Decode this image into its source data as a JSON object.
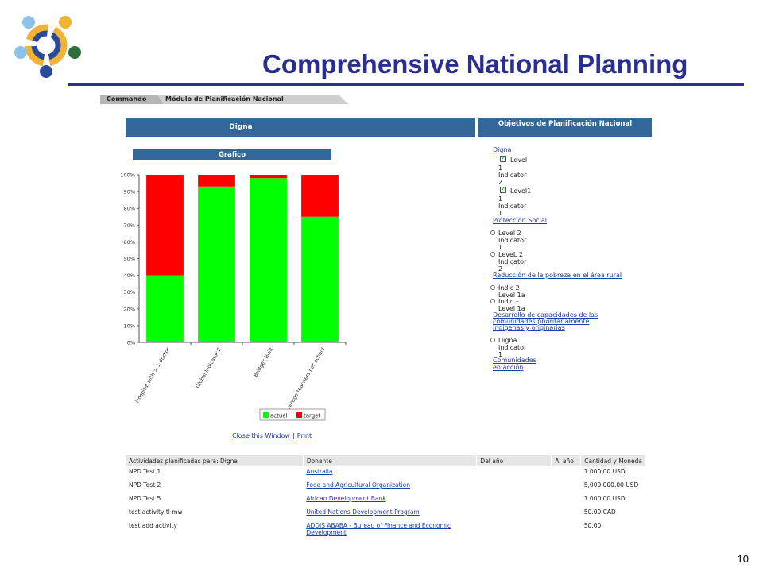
{
  "slide": {
    "title": "Comprehensive National Planning",
    "page_number": "10"
  },
  "breadcrumb": [
    "Commando",
    "Módulo de Planificación Nacional"
  ],
  "panels": {
    "left_header": "Digna",
    "right_header": "Objetivos de Planificación Nacional",
    "chart_header": "Gráfico"
  },
  "chart_data": {
    "type": "bar",
    "stacked": true,
    "categories": [
      "Hospital with > 1 doctor",
      "Global Indicator 2",
      "Bridges Built",
      "Average teachers per school"
    ],
    "series": [
      {
        "name": "actual",
        "values": [
          40,
          93,
          98,
          75
        ],
        "color": "#00ff00"
      },
      {
        "name": "target",
        "values": [
          60,
          7,
          2,
          25
        ],
        "color": "#ff0000"
      }
    ],
    "yticks": [
      "0%",
      "10%",
      "20%",
      "30%",
      "40%",
      "50%",
      "60%",
      "70%",
      "80%",
      "90%",
      "100%"
    ],
    "ylim": [
      0,
      100
    ],
    "legend_position": "bottom"
  },
  "chart_links": {
    "close": "Close this Window",
    "separator": "|",
    "print": "Print"
  },
  "tree": {
    "digna": "Digna",
    "level_1": "Level",
    "level_1_num": "1",
    "indicator_2": "Indicator",
    "indicator_2_num": "2",
    "level1": "Level1",
    "level1_num": "1",
    "indicator_1": "Indicator",
    "indicator_1_num": "1",
    "proteccion": "Protección Social",
    "level2": "Level 2",
    "level2_ind": "Indicator",
    "level2_ind_num": "1",
    "level_2b": "LeveL 2",
    "level_2b_ind": "Indicator",
    "level_2b_ind_num": "2",
    "reduccion": "Reducción de la pobreza en el área rural",
    "indic2": "Indic 2–",
    "indic2_level": "Level 1a",
    "indic_dash": "Indic –",
    "indic_dash_level": "Level 1a",
    "desarrollo_1": "Desarrollo de capacidades de las",
    "desarrollo_2": "comunidades prioritariamente",
    "desarrollo_3": "indígenas y originarias",
    "digna_leaf": "Digna",
    "digna_leaf_ind": "Indicator",
    "digna_leaf_num": "1",
    "comunidades_1": "Comunidades",
    "comunidades_2": "en acción"
  },
  "activities": {
    "headers": [
      "Actividades planificadas para: Digna",
      "Donante",
      "Del año",
      "Al año",
      "Cantidad y Moneda"
    ],
    "rows": [
      {
        "activity": "NPD Test 1",
        "donor": "Australia",
        "from": "",
        "to": "",
        "amount": "1.000.00 USD"
      },
      {
        "activity": "NPD Test 2",
        "donor": "Food and Agricultural Organization",
        "from": "",
        "to": "",
        "amount": "5,000,000.00 USD"
      },
      {
        "activity": "NPD Test 5",
        "donor": "African Development Bank",
        "from": "",
        "to": "",
        "amount": "1.000.00 USD"
      },
      {
        "activity": "test activity tl mw",
        "donor": "United Nations Development Program",
        "from": "",
        "to": "",
        "amount": "50.00 CAD"
      },
      {
        "activity": "test add activity",
        "donor": "ADDIS ABABA - Bureau of Finance and Economic Development",
        "from": "",
        "to": "",
        "amount": "50.00"
      }
    ]
  }
}
